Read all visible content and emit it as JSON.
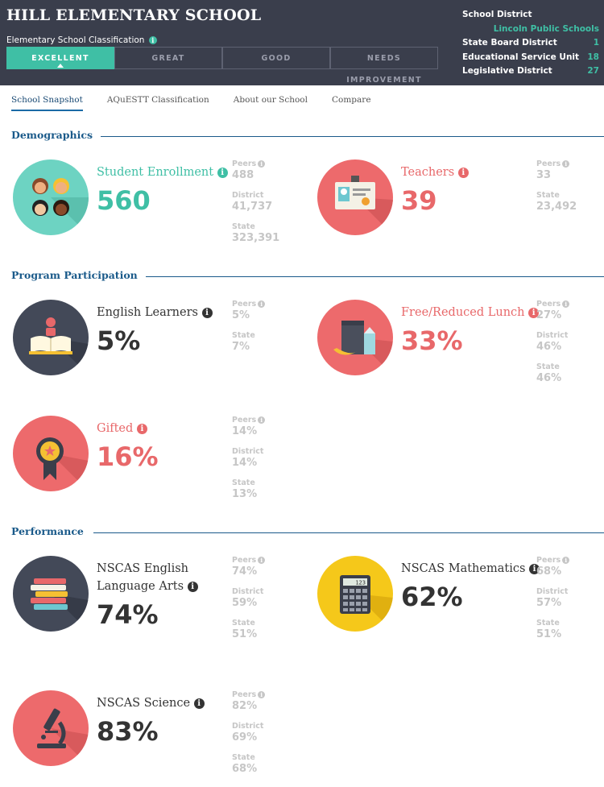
{
  "header": {
    "school_name": "HILL ELEMENTARY SCHOOL",
    "classification_label": "Elementary School Classification",
    "ratings": [
      "EXCELLENT",
      "GREAT",
      "GOOD",
      "NEEDS IMPROVEMENT"
    ],
    "active_rating": "EXCELLENT",
    "district_label": "School District",
    "district_name": "Lincoln Public Schools",
    "details": [
      {
        "label": "State Board District",
        "value": "1"
      },
      {
        "label": "Educational Service Unit",
        "value": "18"
      },
      {
        "label": "Legislative District",
        "value": "27"
      }
    ]
  },
  "tabs": [
    "School Snapshot",
    "AQuESTT Classification",
    "About our School",
    "Compare"
  ],
  "active_tab": "School Snapshot",
  "sections": {
    "demographics": "Demographics",
    "program": "Program Participation",
    "performance": "Performance"
  },
  "comparison_labels": {
    "peers": "Peers",
    "district": "District",
    "state": "State"
  },
  "info_glyph": "i",
  "stats": {
    "enrollment": {
      "label": "Student Enrollment",
      "value": "560",
      "peers": "488",
      "district": "41,737",
      "state": "323,391",
      "color": "#3fbfa5",
      "icon": "students-icon"
    },
    "teachers": {
      "label": "Teachers",
      "value": "39",
      "peers": "33",
      "state": "23,492",
      "color": "#e8686a",
      "icon": "id-badge-icon"
    },
    "english_learners": {
      "label": "English Learners",
      "value": "5%",
      "peers": "5%",
      "state": "7%",
      "color": "#333333",
      "icon": "open-book-icon"
    },
    "lunch": {
      "label": "Free/Reduced Lunch",
      "value": "33%",
      "peers": "27%",
      "district": "46%",
      "state": "46%",
      "color": "#e8686a",
      "icon": "lunch-bag-icon"
    },
    "gifted": {
      "label": "Gifted",
      "value": "16%",
      "peers": "14%",
      "district": "14%",
      "state": "13%",
      "color": "#e8686a",
      "icon": "award-ribbon-icon"
    },
    "ela": {
      "label_line1": "NSCAS English",
      "label_line2": "Language Arts",
      "value": "74%",
      "peers": "74%",
      "district": "59%",
      "state": "51%",
      "color": "#333333",
      "icon": "books-stack-icon"
    },
    "math": {
      "label": "NSCAS Mathematics",
      "value": "62%",
      "peers": "68%",
      "district": "57%",
      "state": "51%",
      "color": "#333333",
      "icon": "calculator-icon",
      "calc_display": "123"
    },
    "science": {
      "label": "NSCAS Science",
      "value": "83%",
      "peers": "82%",
      "district": "69%",
      "state": "68%",
      "color": "#333333",
      "icon": "microscope-icon"
    }
  }
}
